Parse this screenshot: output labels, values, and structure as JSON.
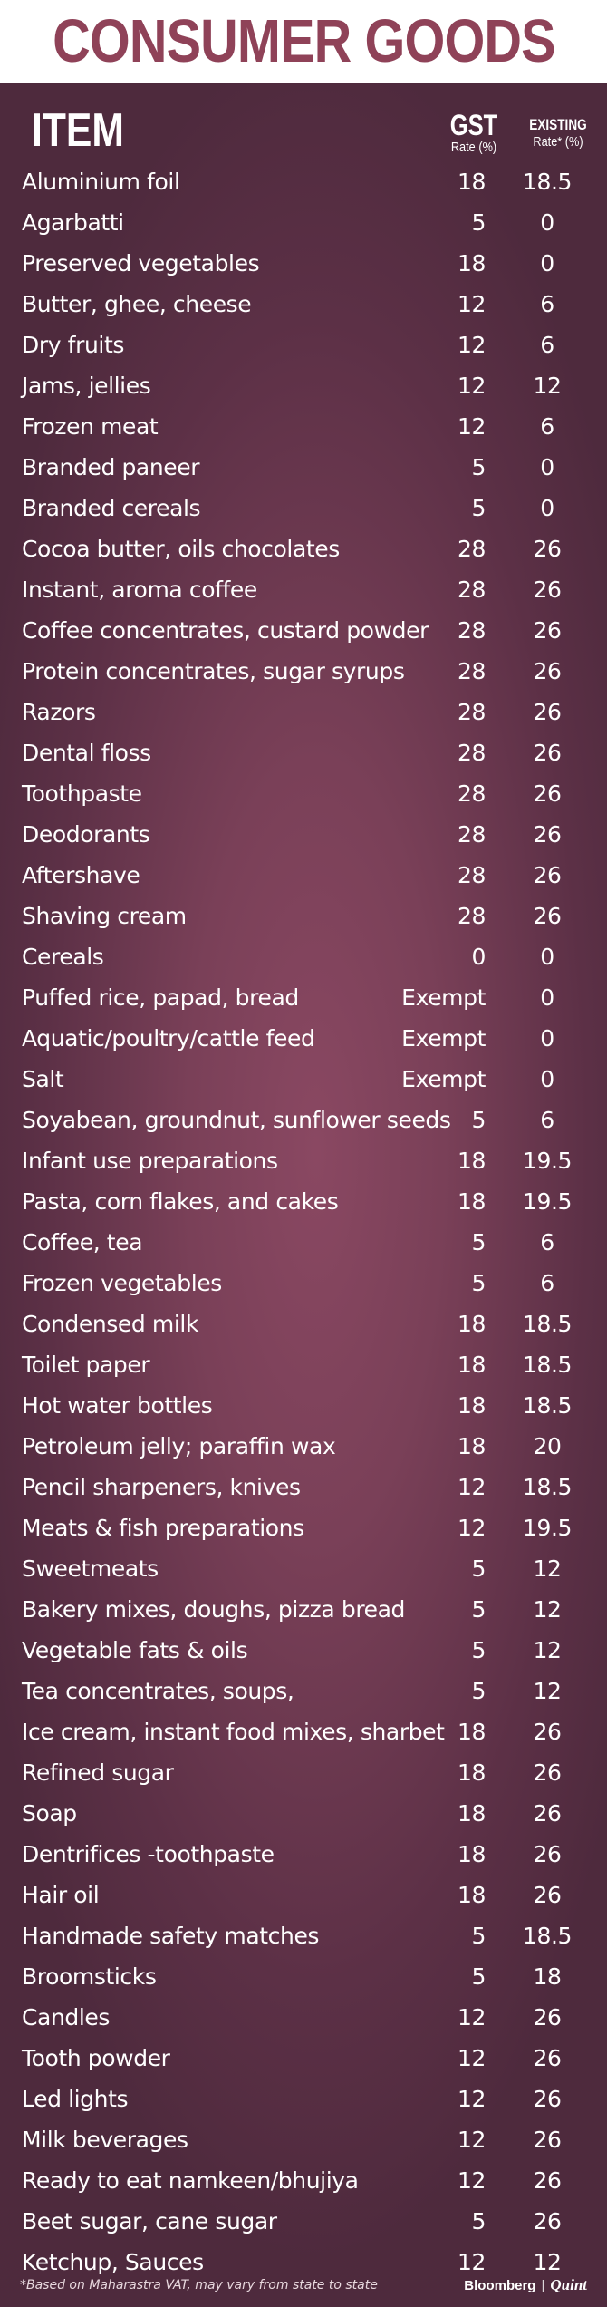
{
  "title": "CONSUMER GOODS",
  "header": {
    "item": "ITEM",
    "gst_line1": "GST",
    "gst_line2": "Rate (%)",
    "existing_line1": "EXISTING",
    "existing_line2": "Rate* (%)"
  },
  "rows": [
    {
      "item": "Aluminium foil",
      "gst": "18",
      "existing": "18.5"
    },
    {
      "item": "Agarbatti",
      "gst": "5",
      "existing": "0"
    },
    {
      "item": "Preserved vegetables",
      "gst": "18",
      "existing": "0"
    },
    {
      "item": "Butter, ghee, cheese",
      "gst": "12",
      "existing": "6"
    },
    {
      "item": "Dry fruits",
      "gst": "12",
      "existing": "6"
    },
    {
      "item": "Jams, jellies",
      "gst": "12",
      "existing": "12"
    },
    {
      "item": "Frozen meat",
      "gst": "12",
      "existing": "6"
    },
    {
      "item": "Branded paneer",
      "gst": "5",
      "existing": "0"
    },
    {
      "item": "Branded cereals",
      "gst": "5",
      "existing": "0"
    },
    {
      "item": "Cocoa butter, oils chocolates",
      "gst": "28",
      "existing": "26"
    },
    {
      "item": "Instant, aroma coffee",
      "gst": "28",
      "existing": "26"
    },
    {
      "item": "Coffee concentrates, custard powder",
      "gst": "28",
      "existing": "26"
    },
    {
      "item": "Protein concentrates, sugar syrups",
      "gst": "28",
      "existing": "26"
    },
    {
      "item": "Razors",
      "gst": "28",
      "existing": "26"
    },
    {
      "item": "Dental floss",
      "gst": "28",
      "existing": "26"
    },
    {
      "item": "Toothpaste",
      "gst": "28",
      "existing": "26"
    },
    {
      "item": "Deodorants",
      "gst": "28",
      "existing": "26"
    },
    {
      "item": "Aftershave",
      "gst": "28",
      "existing": "26"
    },
    {
      "item": "Shaving cream",
      "gst": "28",
      "existing": "26"
    },
    {
      "item": "Cereals",
      "gst": "0",
      "existing": "0"
    },
    {
      "item": "Puffed rice, papad, bread",
      "gst": "Exempt",
      "existing": "0"
    },
    {
      "item": "Aquatic/poultry/cattle feed",
      "gst": "Exempt",
      "existing": "0"
    },
    {
      "item": "Salt",
      "gst": "Exempt",
      "existing": "0"
    },
    {
      "item": "Soyabean, groundnut, sunflower seeds",
      "gst": "5",
      "existing": "6"
    },
    {
      "item": "Infant use preparations",
      "gst": "18",
      "existing": "19.5"
    },
    {
      "item": "Pasta, corn flakes, and cakes",
      "gst": "18",
      "existing": "19.5"
    },
    {
      "item": "Coffee, tea",
      "gst": "5",
      "existing": "6"
    },
    {
      "item": "Frozen vegetables",
      "gst": "5",
      "existing": "6"
    },
    {
      "item": "Condensed milk",
      "gst": "18",
      "existing": "18.5"
    },
    {
      "item": "Toilet paper",
      "gst": "18",
      "existing": "18.5"
    },
    {
      "item": "Hot water bottles",
      "gst": "18",
      "existing": "18.5"
    },
    {
      "item": "Petroleum jelly; paraffin wax",
      "gst": "18",
      "existing": "20"
    },
    {
      "item": "Pencil sharpeners, knives",
      "gst": "12",
      "existing": "18.5"
    },
    {
      "item": "Meats & fish preparations",
      "gst": "12",
      "existing": "19.5"
    },
    {
      "item": "Sweetmeats",
      "gst": "5",
      "existing": "12"
    },
    {
      "item": "Bakery mixes, doughs, pizza bread",
      "gst": "5",
      "existing": "12"
    },
    {
      "item": "Vegetable fats & oils",
      "gst": "5",
      "existing": "12"
    },
    {
      "item": "Tea concentrates, soups,",
      "gst": "5",
      "existing": "12"
    },
    {
      "item": "Ice cream, instant food mixes, sharbet",
      "gst": "18",
      "existing": "26"
    },
    {
      "item": "Refined sugar",
      "gst": "18",
      "existing": "26"
    },
    {
      "item": "Soap",
      "gst": "18",
      "existing": "26"
    },
    {
      "item": "Dentrifices -toothpaste",
      "gst": "18",
      "existing": "26"
    },
    {
      "item": "Hair oil",
      "gst": "18",
      "existing": "26"
    },
    {
      "item": "Handmade safety matches",
      "gst": "5",
      "existing": "18.5"
    },
    {
      "item": "Broomsticks",
      "gst": "5",
      "existing": "18"
    },
    {
      "item": "Candles",
      "gst": "12",
      "existing": "26"
    },
    {
      "item": "Tooth powder",
      "gst": "12",
      "existing": "26"
    },
    {
      "item": "Led lights",
      "gst": "12",
      "existing": "26"
    },
    {
      "item": "Milk beverages",
      "gst": "12",
      "existing": "26"
    },
    {
      "item": "Ready to eat namkeen/bhujiya",
      "gst": "12",
      "existing": "26"
    },
    {
      "item": "Beet sugar, cane sugar",
      "gst": "5",
      "existing": "26"
    },
    {
      "item": "Ketchup, Sauces",
      "gst": "12",
      "existing": "12"
    }
  ],
  "footnote": "*Based on Maharastra VAT, may vary from state to state",
  "brand": {
    "name1": "Bloomberg",
    "separator": "|",
    "name2": "Quint"
  },
  "colors": {
    "title": "#8f4258",
    "panel": "#7a4058",
    "text": "#ffffff"
  }
}
